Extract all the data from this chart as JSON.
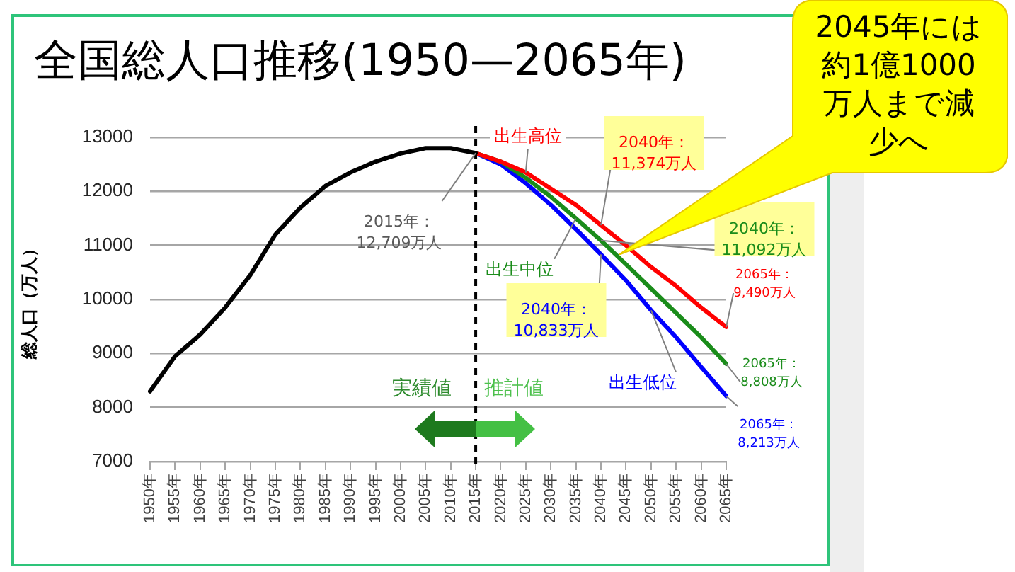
{
  "chart_data": {
    "type": "line",
    "title": "全国総人口推移(1950—2065年)",
    "ylabel": "総人口（万人）",
    "categories": [
      "1950年",
      "1955年",
      "1960年",
      "1965年",
      "1970年",
      "1975年",
      "1980年",
      "1985年",
      "1990年",
      "1995年",
      "2000年",
      "2005年",
      "2010年",
      "2015年",
      "2020年",
      "2025年",
      "2030年",
      "2035年",
      "2040年",
      "2045年",
      "2050年",
      "2055年",
      "2060年",
      "2065年"
    ],
    "series": [
      {
        "color": "#000000",
        "values": [
          8300,
          8950,
          9350,
          9850,
          10450,
          11200,
          11700,
          12100,
          12350,
          12550,
          12700,
          12800,
          12800,
          12709,
          null,
          null,
          null,
          null,
          null,
          null,
          null,
          null,
          null,
          null
        ]
      },
      {
        "name": "出生高位",
        "color": "#ff0000",
        "values": [
          null,
          null,
          null,
          null,
          null,
          null,
          null,
          null,
          null,
          null,
          null,
          null,
          null,
          12709,
          12550,
          12350,
          12050,
          11750,
          11374,
          11000,
          10600,
          10250,
          9850,
          9490
        ]
      },
      {
        "name": "出生中位",
        "color": "#1a8c1a",
        "values": [
          null,
          null,
          null,
          null,
          null,
          null,
          null,
          null,
          null,
          null,
          null,
          null,
          null,
          12709,
          12550,
          12250,
          11900,
          11500,
          11092,
          10650,
          10200,
          9750,
          9300,
          8808
        ]
      },
      {
        "name": "出生低位",
        "color": "#0000ff",
        "values": [
          null,
          null,
          null,
          null,
          null,
          null,
          null,
          null,
          null,
          null,
          null,
          null,
          null,
          12709,
          12500,
          12150,
          11750,
          11300,
          10833,
          10350,
          9800,
          9300,
          8750,
          8213
        ]
      }
    ],
    "ylim": [
      7000,
      13000
    ],
    "yticks": [
      7000,
      8000,
      9000,
      10000,
      11000,
      12000,
      13000
    ],
    "grid": "y",
    "marker": "none",
    "line_style": "solid",
    "ref_lines": [
      {
        "axis": "x",
        "value": "2015年",
        "color": "#000000",
        "line_style": "dashed"
      }
    ],
    "annotations": [
      {
        "text": "2015年：12,709万人",
        "x": "2015年",
        "y": 12709
      },
      {
        "text": "2040年：11,374万人",
        "x": "2040年",
        "y": 11374
      },
      {
        "text": "2040年：11,092万人",
        "x": "2040年",
        "y": 11092
      },
      {
        "text": "2040年：10,833万人",
        "x": "2040年",
        "y": 10833
      },
      {
        "text": "2065年：9,490万人",
        "x": "2065年",
        "y": 9490
      },
      {
        "text": "2065年：8,808万人",
        "x": "2065年",
        "y": 8808
      },
      {
        "text": "2065年：8,213万人",
        "x": "2065年",
        "y": 8213
      },
      "実績値",
      "推計値",
      "2045年には約1億1000万人まで減少へ"
    ]
  }
}
